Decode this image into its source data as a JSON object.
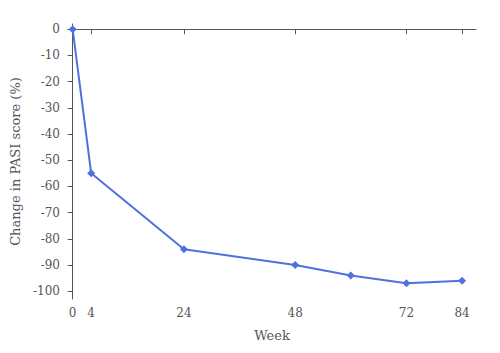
{
  "chart_data": {
    "type": "line",
    "x": [
      0,
      4,
      24,
      48,
      60,
      72,
      84
    ],
    "values": [
      0,
      -55,
      -84,
      -90,
      -94,
      -97,
      -96
    ],
    "xlabel": "Week",
    "ylabel": "Change in PASI score (%)",
    "xlim": [
      -1,
      87
    ],
    "ylim": [
      -103,
      2
    ],
    "xticks": [
      0,
      4,
      24,
      48,
      72,
      84
    ],
    "yticks": [
      0,
      -10,
      -20,
      -30,
      -40,
      -50,
      -60,
      -70,
      -80,
      -90,
      -100
    ],
    "grid": false,
    "marker": "diamond"
  }
}
